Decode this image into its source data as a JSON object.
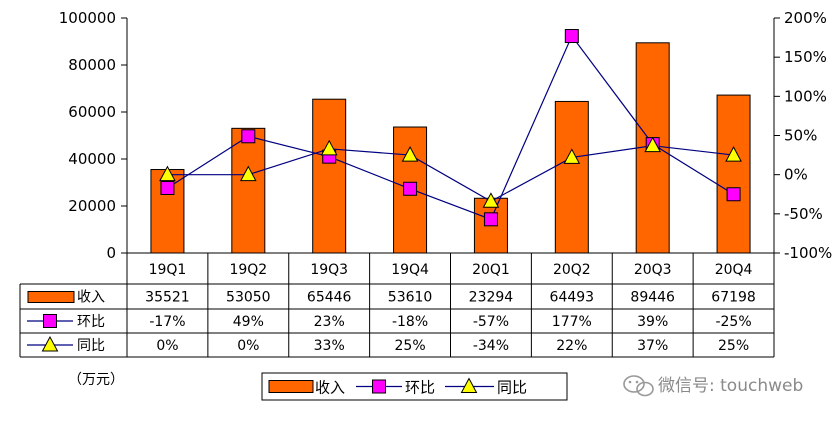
{
  "chart_data": {
    "type": "bar",
    "categories": [
      "19Q1",
      "19Q2",
      "19Q3",
      "19Q4",
      "20Q1",
      "20Q2",
      "20Q3",
      "20Q4"
    ],
    "series": [
      {
        "name": "收入",
        "kind": "bar",
        "axis": "left",
        "values": [
          35521,
          53050,
          65446,
          53610,
          23294,
          64493,
          89446,
          67198
        ],
        "labels": [
          "35521",
          "53050",
          "65446",
          "53610",
          "23294",
          "64493",
          "89446",
          "67198"
        ],
        "color": "#FF6600"
      },
      {
        "name": "环比",
        "kind": "line",
        "axis": "right",
        "values": [
          -17,
          49,
          23,
          -18,
          -57,
          177,
          39,
          -25
        ],
        "labels": [
          "-17%",
          "49%",
          "23%",
          "-18%",
          "-57%",
          "177%",
          "39%",
          "-25%"
        ],
        "color": "#FF00FF",
        "line_color": "#000080",
        "marker": "square"
      },
      {
        "name": "同比",
        "kind": "line",
        "axis": "right",
        "values": [
          0,
          0,
          33,
          25,
          -34,
          22,
          37,
          25
        ],
        "labels": [
          "0%",
          "0%",
          "33%",
          "25%",
          "-34%",
          "22%",
          "37%",
          "25%"
        ],
        "color": "#FFFF00",
        "line_color": "#000080",
        "marker": "triangle"
      }
    ],
    "y_left": {
      "min": 0,
      "max": 100000,
      "ticks": [
        "0",
        "20000",
        "40000",
        "60000",
        "80000",
        "100000"
      ],
      "unit": "（万元）"
    },
    "y_right": {
      "min": -100,
      "max": 200,
      "ticks": [
        "-100%",
        "-50%",
        "0%",
        "50%",
        "100%",
        "150%",
        "200%"
      ]
    },
    "grid": false,
    "data_table": true,
    "legend_position": "bottom-center"
  },
  "watermark": "微信号: touchweb"
}
